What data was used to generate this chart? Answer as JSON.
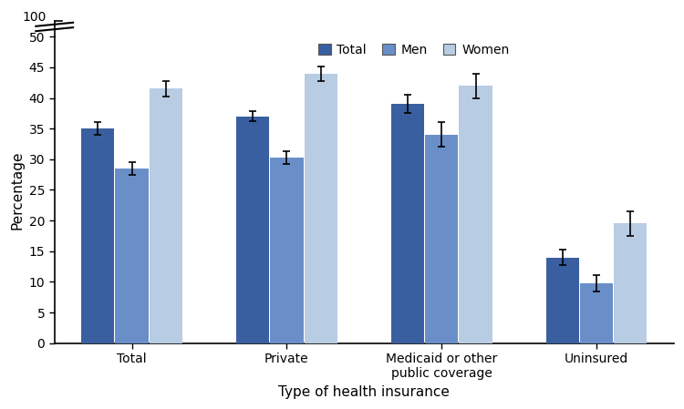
{
  "categories": [
    "Total",
    "Private",
    "Medicaid or other\npublic coverage",
    "Uninsured"
  ],
  "series": {
    "Total": {
      "values": [
        35.0,
        37.0,
        39.0,
        14.0
      ],
      "errors": [
        1.0,
        0.8,
        1.5,
        1.2
      ],
      "color": "#3a5fa0"
    },
    "Men": {
      "values": [
        28.5,
        30.3,
        34.0,
        9.8
      ],
      "errors": [
        1.0,
        1.0,
        2.0,
        1.3
      ],
      "color": "#6a8fc8"
    },
    "Women": {
      "values": [
        41.5,
        44.0,
        42.0,
        19.5
      ],
      "errors": [
        1.2,
        1.2,
        2.0,
        2.0
      ],
      "color": "#b8cce4"
    }
  },
  "ylabel": "Percentage",
  "xlabel": "Type of health insurance",
  "ylim": [
    0,
    50
  ],
  "yticks": [
    0,
    5,
    10,
    15,
    20,
    25,
    30,
    35,
    40,
    45,
    50
  ],
  "bar_width": 0.22,
  "legend_labels": [
    "Total",
    "Men",
    "Women"
  ],
  "background_color": "#ffffff",
  "axis_label_fontsize": 11,
  "tick_fontsize": 10,
  "legend_fontsize": 10,
  "capsize": 3,
  "error_linewidth": 1.2
}
